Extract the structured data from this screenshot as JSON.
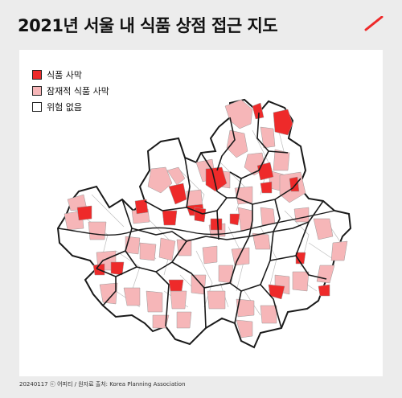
{
  "title": "2021년 서울 내 식품 상점 접근 지도",
  "legend": [
    {
      "label": "식품 사막",
      "color": "#ee2a2a"
    },
    {
      "label": "잠재적 식품 사막",
      "color": "#f6b6b8"
    },
    {
      "label": "위험 없음",
      "color": "#ffffff"
    }
  ],
  "colors": {
    "desert": "#ee2a2a",
    "potential": "#f6b6b8",
    "none": "#ffffff",
    "outline": "#1a1a1a",
    "brand": "#ee2a2a"
  },
  "footer": "20240117 ⓒ 어피티 / 원자료 출처: Korea Planning Association"
}
